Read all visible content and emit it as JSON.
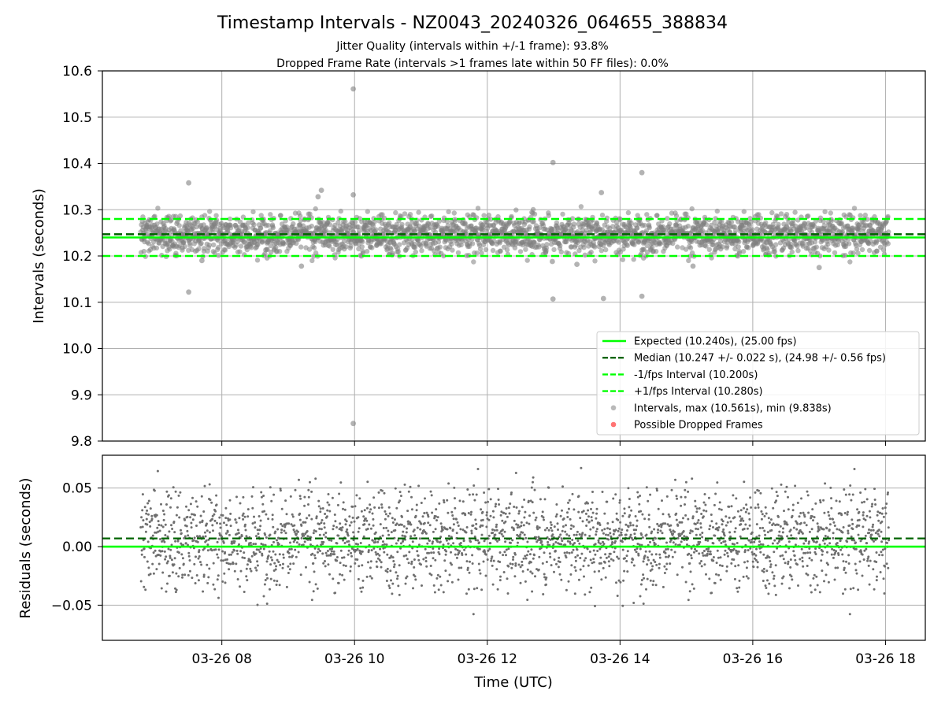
{
  "chart_data": {
    "type": "scatter",
    "title": "Timestamp Intervals - NZ0043_20240326_064655_388834",
    "subtitle_lines": [
      "Jitter Quality (intervals within +/-1 frame): 93.8%",
      "Dropped Frame Rate (intervals >1 frames late within 50 FF files): 0.0%"
    ],
    "xlabel": "Time (UTC)",
    "x_tick_labels": [
      "03-26 08",
      "03-26 10",
      "03-26 12",
      "03-26 14",
      "03-26 16",
      "03-26 18"
    ],
    "x_tick_hours": [
      8,
      10,
      12,
      14,
      16,
      18
    ],
    "x_range_hours": [
      6.2,
      18.6
    ],
    "data_x_range_hours": [
      6.78,
      18.05
    ],
    "legend_position": "lower right",
    "grid": true,
    "panels": {
      "intervals": {
        "ylabel": "Intervals (seconds)",
        "ylim": [
          9.8,
          10.6
        ],
        "y_ticks": [
          9.8,
          9.9,
          10.0,
          10.1,
          10.2,
          10.3,
          10.4,
          10.5,
          10.6
        ],
        "y_tick_labels": [
          "9.8",
          "9.9",
          "10.0",
          "10.1",
          "10.2",
          "10.3",
          "10.4",
          "10.5",
          "10.6"
        ],
        "expected": 10.24,
        "median": 10.247,
        "lower_bound": 10.2,
        "upper_bound": 10.28,
        "outliers": [
          {
            "t": 7.5,
            "y": 10.358
          },
          {
            "t": 7.5,
            "y": 10.122
          },
          {
            "t": 7.7,
            "y": 10.19
          },
          {
            "t": 9.2,
            "y": 10.178
          },
          {
            "t": 9.5,
            "y": 10.342
          },
          {
            "t": 9.45,
            "y": 10.328
          },
          {
            "t": 9.98,
            "y": 10.561
          },
          {
            "t": 9.98,
            "y": 10.332
          },
          {
            "t": 9.98,
            "y": 9.838
          },
          {
            "t": 12.99,
            "y": 10.402
          },
          {
            "t": 12.99,
            "y": 10.107
          },
          {
            "t": 12.98,
            "y": 10.188
          },
          {
            "t": 13.35,
            "y": 10.182
          },
          {
            "t": 13.72,
            "y": 10.337
          },
          {
            "t": 13.75,
            "y": 10.108
          },
          {
            "t": 14.33,
            "y": 10.38
          },
          {
            "t": 14.33,
            "y": 10.113
          },
          {
            "t": 15.1,
            "y": 10.178
          },
          {
            "t": 17.0,
            "y": 10.175
          }
        ],
        "legend": [
          {
            "label": "Expected (10.240s), (25.00 fps)",
            "style": "solid",
            "color": "#00ff00"
          },
          {
            "label": "Median (10.247 +/- 0.022 s), (24.98 +/- 0.56 fps)",
            "style": "dashed",
            "color": "#006400"
          },
          {
            "label": "-1/fps Interval (10.200s)",
            "style": "dashed",
            "color": "#00ff00"
          },
          {
            "label": "+1/fps Interval (10.280s)",
            "style": "dashed",
            "color": "#00ff00"
          },
          {
            "label": "Intervals, max (10.561s), min (9.838s)",
            "style": "marker",
            "color": "#808080"
          },
          {
            "label": "Possible Dropped Frames",
            "style": "marker",
            "color": "#ff0000"
          }
        ]
      },
      "residuals": {
        "ylabel": "Residuals (seconds)",
        "ylim": [
          -0.08,
          0.078
        ],
        "y_ticks": [
          -0.05,
          0.0,
          0.05
        ],
        "y_tick_labels": [
          "−0.05",
          "0.00",
          "0.05"
        ],
        "zero_line": 0.0,
        "median_line": 0.007
      }
    },
    "colors": {
      "expected": "#00ff00",
      "median": "#006400",
      "points": "#808080",
      "dropped": "#ff0000",
      "grid": "#b0b0b0"
    }
  }
}
